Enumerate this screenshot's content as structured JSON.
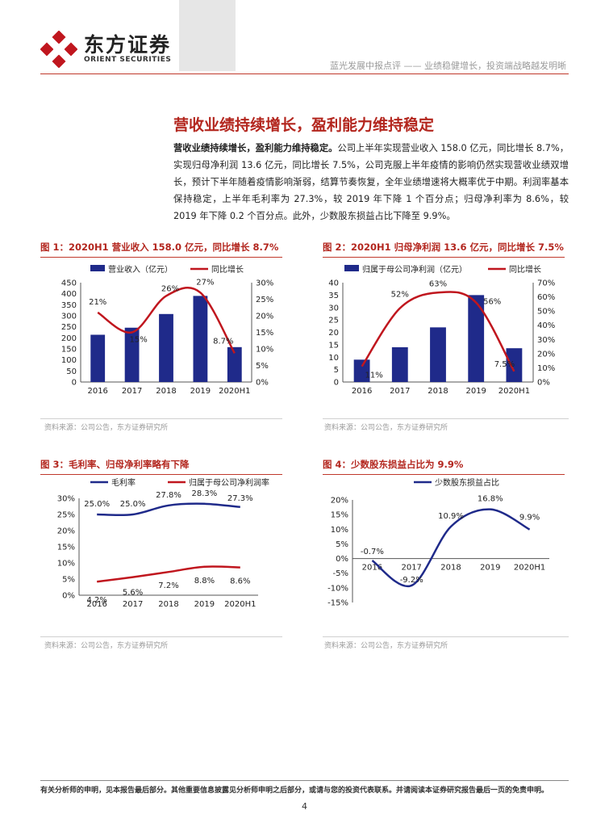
{
  "header": {
    "logo_cn": "东方证券",
    "logo_en": "ORIENT SECURITIES",
    "subtitle": "蓝光发展中报点评 —— 业绩稳健增长，投资端战略越发明晰"
  },
  "section": {
    "title": "营收业绩持续增长，盈利能力维持稳定",
    "lead": "营收业绩持续增长，盈利能力维持稳定。",
    "body": "公司上半年实现营业收入 158.0 亿元，同比增长 8.7%，实现归母净利润 13.6 亿元，同比增长 7.5%，公司克服上半年疫情的影响仍然实现营收业绩双增长，预计下半年随着疫情影响渐弱，结算节奏恢复，全年业绩增速将大概率优于中期。利润率基本保持稳定，上半年毛利率为 27.3%，较 2019 年下降 1 个百分点；归母净利率为 8.6%，较 2019 年下降 0.2 个百分点。此外，少数股东损益占比下降至 9.9%。"
  },
  "figures": {
    "fig1": {
      "title": "图 1：2020H1 营业收入 158.0 亿元，同比增长 8.7%",
      "source": "资料来源：公司公告，东方证券研究所"
    },
    "fig2": {
      "title": "图 2：2020H1 归母净利润 13.6 亿元，同比增长 7.5%",
      "source": "资料来源：公司公告，东方证券研究所"
    },
    "fig3": {
      "title": "图 3：毛利率、归母净利率略有下降",
      "source": "资料来源：公司公告，东方证券研究所"
    },
    "fig4": {
      "title": "图 4：少数股东损益占比为 9.9%",
      "source": "资料来源：公司公告，东方证券研究所"
    }
  },
  "chart_data": [
    {
      "type": "bar",
      "categories": [
        "2016",
        "2017",
        "2018",
        "2019",
        "2020H1"
      ],
      "series": [
        {
          "name": "营业收入（亿元）",
          "type": "bar",
          "axis": "left",
          "values": [
            214,
            246,
            308,
            390,
            158
          ],
          "color": "#1f2a8a"
        },
        {
          "name": "同比增长",
          "type": "line",
          "axis": "right",
          "values": [
            21,
            15,
            26,
            27,
            8.7
          ],
          "labels": [
            "21%",
            "15%",
            "26%",
            "27%",
            "8.7%"
          ],
          "color": "#c0161e"
        }
      ],
      "ylim": [
        0,
        450
      ],
      "yticks": [
        "0",
        "50",
        "100",
        "150",
        "200",
        "250",
        "300",
        "350",
        "400",
        "450"
      ],
      "y2lim": [
        0,
        30
      ],
      "y2ticks": [
        "0%",
        "5%",
        "10%",
        "15%",
        "20%",
        "25%",
        "30%"
      ],
      "legend": "top"
    },
    {
      "type": "bar",
      "categories": [
        "2016",
        "2017",
        "2018",
        "2019",
        "2020H1"
      ],
      "series": [
        {
          "name": "归属于母公司净利润（亿元）",
          "type": "bar",
          "axis": "left",
          "values": [
            9,
            14,
            22,
            35,
            13.6
          ],
          "color": "#1f2a8a"
        },
        {
          "name": "同比增长",
          "type": "line",
          "axis": "right",
          "values": [
            11,
            52,
            63,
            56,
            7.5
          ],
          "labels": [
            "11%",
            "52%",
            "63%",
            "56%",
            "7.5%"
          ],
          "color": "#c0161e"
        }
      ],
      "ylim": [
        0,
        40
      ],
      "yticks": [
        "0",
        "5",
        "10",
        "15",
        "20",
        "25",
        "30",
        "35",
        "40"
      ],
      "y2lim": [
        0,
        70
      ],
      "y2ticks": [
        "0%",
        "10%",
        "20%",
        "30%",
        "40%",
        "50%",
        "60%",
        "70%"
      ],
      "legend": "top"
    },
    {
      "type": "line",
      "categories": [
        "2016",
        "2017",
        "2018",
        "2019",
        "2020H1"
      ],
      "series": [
        {
          "name": "毛利率",
          "values": [
            25.0,
            25.0,
            27.8,
            28.3,
            27.3
          ],
          "labels": [
            "25.0%",
            "25.0%",
            "27.8%",
            "28.3%",
            "27.3%"
          ],
          "color": "#1f2a8a"
        },
        {
          "name": "归属于母公司净利润率",
          "values": [
            4.2,
            5.6,
            7.2,
            8.8,
            8.6
          ],
          "labels": [
            "4.2%",
            "5.6%",
            "7.2%",
            "8.8%",
            "8.6%"
          ],
          "color": "#c0161e"
        }
      ],
      "ylim": [
        0,
        30
      ],
      "yticks": [
        "0%",
        "5%",
        "10%",
        "15%",
        "20%",
        "25%",
        "30%"
      ],
      "legend": "top"
    },
    {
      "type": "line",
      "categories": [
        "2016",
        "2017",
        "2018",
        "2019",
        "2020H1"
      ],
      "series": [
        {
          "name": "少数股东损益占比",
          "values": [
            -0.7,
            -9.2,
            10.9,
            16.8,
            9.9
          ],
          "labels": [
            "-0.7%",
            "-9.2%",
            "10.9%",
            "16.8%",
            "9.9%"
          ],
          "color": "#1f2a8a"
        }
      ],
      "ylim": [
        -15,
        20
      ],
      "yticks": [
        "-15%",
        "-10%",
        "-5%",
        "0%",
        "5%",
        "10%",
        "15%",
        "20%"
      ],
      "legend": "top"
    }
  ],
  "footer": {
    "note": "有关分析师的申明，见本报告最后部分。其他重要信息披露见分析师申明之后部分，或请与您的投资代表联系。并请阅读本证券研究报告最后一页的免责申明。",
    "page": "4"
  }
}
